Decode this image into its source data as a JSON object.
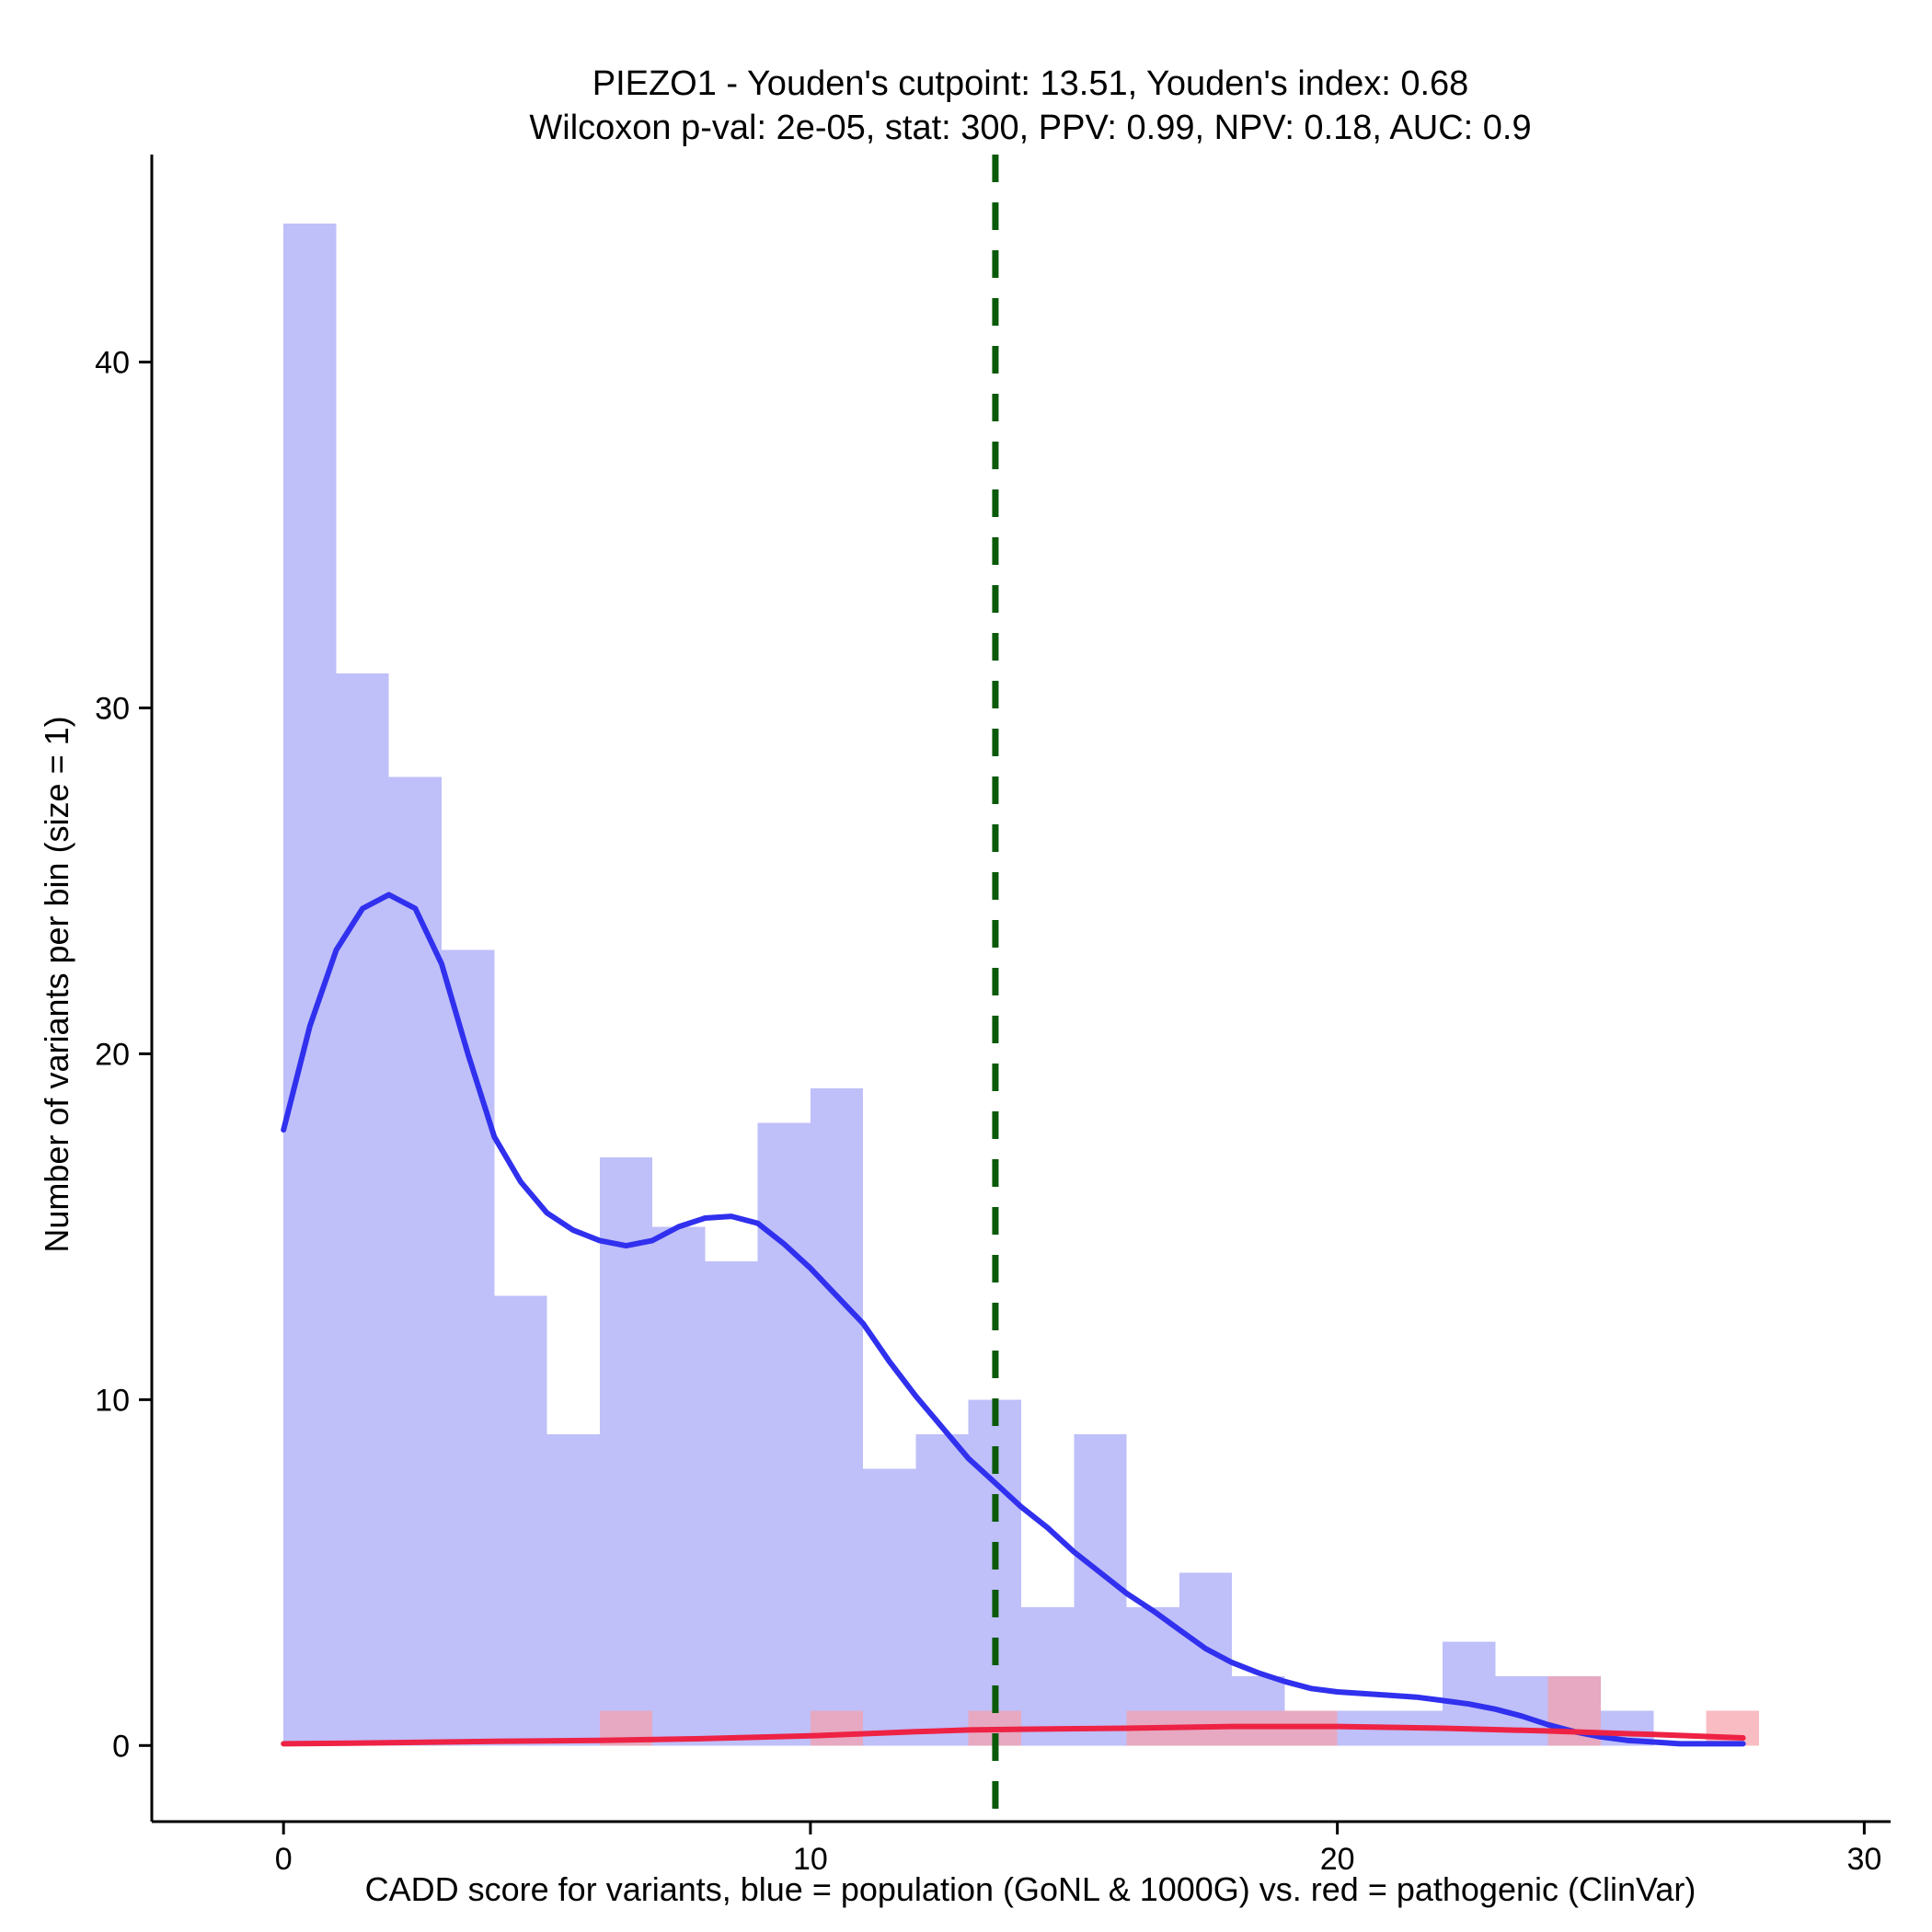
{
  "chart_data": {
    "type": "bar",
    "title": "PIEZO1 - Youden's cutpoint: 13.51, Youden's index: 0.68",
    "subtitle": "Wilcoxon p-val: 2e-05, stat: 300, PPV: 0.99, NPV: 0.18, AUC: 0.9",
    "xlabel": "CADD score for variants, blue = population (GoNL & 1000G) vs. red = pathogenic (ClinVar)",
    "ylabel": "Number of variants per bin (size = 1)",
    "xlim": [
      -2.5,
      30.5
    ],
    "ylim": [
      -2.2,
      46
    ],
    "x_ticks": [
      0,
      10,
      20,
      30
    ],
    "y_ticks": [
      0,
      10,
      20,
      30,
      40
    ],
    "grid": false,
    "legend": "none",
    "bin_width": 1,
    "cutpoint": 13.51,
    "colors": {
      "population_bar": "#bfbffa",
      "pathogenic_bar": "#f7a0a8",
      "population_density": "#3030ee",
      "pathogenic_density": "#ee2244",
      "cutpoint_line": "#0a5a0a"
    },
    "series": [
      {
        "kind": "histogram",
        "bin_starts": [
          0,
          1,
          2,
          3,
          4,
          5,
          6,
          7,
          8,
          9,
          10,
          11,
          12,
          13,
          14,
          15,
          16,
          17,
          18,
          19,
          20,
          21,
          22,
          23,
          24,
          25
        ],
        "values": [
          44,
          31,
          28,
          23,
          13,
          9,
          17,
          15,
          14,
          18,
          19,
          8,
          9,
          10,
          4,
          9,
          4,
          5,
          2,
          1,
          1,
          1,
          3,
          2,
          2,
          1
        ]
      },
      {
        "kind": "histogram",
        "bin_starts": [
          6,
          10,
          13,
          16,
          17,
          18,
          19,
          24,
          27
        ],
        "values": [
          1,
          1,
          1,
          1,
          1,
          1,
          1,
          2,
          1
        ]
      },
      {
        "kind": "density",
        "x": [
          0,
          0.5,
          1,
          1.5,
          2,
          2.5,
          3,
          3.5,
          4,
          4.5,
          5,
          5.5,
          6,
          6.5,
          7,
          7.5,
          8,
          8.5,
          9,
          9.5,
          10,
          10.5,
          11,
          11.5,
          12,
          12.5,
          13,
          13.5,
          14,
          14.5,
          15,
          15.5,
          16,
          16.5,
          17,
          17.5,
          18,
          18.5,
          19,
          19.5,
          20,
          20.5,
          21,
          21.5,
          22,
          22.5,
          23,
          23.5,
          24,
          24.5,
          25,
          25.5,
          26,
          26.5,
          27,
          27.5,
          27.7
        ],
        "y": [
          17.8,
          20.8,
          23.0,
          24.2,
          24.6,
          24.2,
          22.6,
          20.0,
          17.6,
          16.3,
          15.4,
          14.9,
          14.6,
          14.45,
          14.6,
          15.0,
          15.25,
          15.3,
          15.1,
          14.5,
          13.8,
          13.0,
          12.2,
          11.1,
          10.1,
          9.2,
          8.3,
          7.6,
          6.9,
          6.3,
          5.6,
          5.0,
          4.4,
          3.9,
          3.35,
          2.8,
          2.4,
          2.1,
          1.85,
          1.65,
          1.55,
          1.5,
          1.45,
          1.4,
          1.3,
          1.2,
          1.05,
          0.85,
          0.6,
          0.4,
          0.25,
          0.15,
          0.1,
          0.05,
          0.05,
          0.05,
          0.05
        ]
      },
      {
        "kind": "density",
        "x": [
          0,
          2,
          4,
          6,
          8,
          10,
          12,
          13,
          14,
          16,
          18,
          20,
          22,
          24,
          26,
          27.7
        ],
        "y": [
          0.05,
          0.08,
          0.12,
          0.15,
          0.2,
          0.28,
          0.4,
          0.45,
          0.47,
          0.5,
          0.55,
          0.55,
          0.5,
          0.42,
          0.32,
          0.22
        ]
      }
    ]
  }
}
